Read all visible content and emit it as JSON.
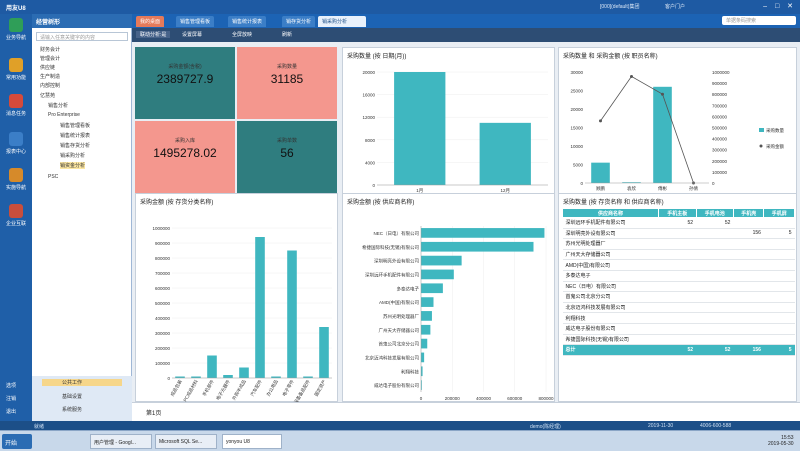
{
  "app": {
    "logo": "用友U8",
    "info": "[000](default)集团",
    "user": "客户门户",
    "win_btns": "– □ ✕"
  },
  "leftnav": [
    {
      "label": "业务导航",
      "color": "#2f9e58",
      "icon": "briefcase-icon"
    },
    {
      "label": "常用功能",
      "color": "#e0a028",
      "icon": "star-icon"
    },
    {
      "label": "消息任务",
      "color": "#d64a3a",
      "icon": "message-icon"
    },
    {
      "label": "报表中心",
      "color": "#3b7ec7",
      "icon": "report-icon"
    },
    {
      "label": "实施导航",
      "color": "#d68a2a",
      "icon": "compass-icon"
    },
    {
      "label": "企业互联",
      "color": "#c94e3c",
      "icon": "network-icon"
    }
  ],
  "leftnav_bottom": [
    "选项",
    "注销",
    "退出"
  ],
  "tree": {
    "title": "经营树形",
    "search_placeholder": "请输入任意关键字的内容",
    "items": [
      "财务会计",
      "管理会计",
      "供应链",
      "生产制造",
      "内部控制",
      "亿慧苑",
      "销售分析",
      "Pro Enterprise",
      "销售管理看板",
      "销售统计报表",
      "销售存货分析",
      "销采购分析",
      "销资金分析",
      "PSC"
    ],
    "footer": [
      "公共工作",
      "基础设置",
      "系统服务"
    ]
  },
  "tabs": [
    "我的桌面",
    "销售管理看板",
    "销售统计报表",
    "销存货分析",
    "销采购分析"
  ],
  "search_placeholder": "单据条码搜索",
  "toolbar": [
    "联动分析:是",
    "设置屏幕",
    "全屏放映",
    "刷新"
  ],
  "kpis": [
    {
      "label": "采购金额(含税)",
      "value": "2389727.9",
      "color": "#2f7d7f"
    },
    {
      "label": "采购数量",
      "value": "31185",
      "color": "#f4978e"
    },
    {
      "label": "采购入库",
      "value": "1495278.02",
      "color": "#f4978e"
    },
    {
      "label": "采购单数",
      "value": "56",
      "color": "#2f7d7f"
    }
  ],
  "charts": {
    "by_month": {
      "type": "bar",
      "title": "采购数量 (按 日期(月))",
      "categories": [
        "1月",
        "12月"
      ],
      "values": [
        20500,
        11000
      ],
      "ylim": [
        0,
        20000
      ],
      "yticks": [
        "0",
        "4000",
        "8000",
        "12000",
        "16000",
        "20000"
      ],
      "color": "#3fb7c0"
    },
    "by_staff": {
      "type": "bar+line",
      "title": "采购数量 和 采购金额 (按 职员名称)",
      "categories": [
        "顾鹏",
        "袁欣",
        "傅彬",
        "孙倩"
      ],
      "bars": [
        5500,
        200,
        26000,
        0
      ],
      "line": [
        560000,
        960000,
        800000,
        0
      ],
      "ylim_left": [
        0,
        30000
      ],
      "ylim_right": [
        0,
        1000000
      ],
      "yticks_left": [
        "0",
        "5000",
        "10000",
        "15000",
        "20000",
        "25000",
        "30000"
      ],
      "yticks_right": [
        "0",
        "100000",
        "200000",
        "300000",
        "400000",
        "500000",
        "600000",
        "700000",
        "800000",
        "900000",
        "1000000"
      ],
      "legend": [
        "采购数量",
        "采购金额"
      ],
      "color": "#3fb7c0",
      "line_color": "#555555"
    },
    "by_class": {
      "type": "bar",
      "title": "采购金额 (按 存货分类名称)",
      "categories": [
        "成品包装",
        "PC成品材料",
        "手机部件",
        "电子元器件",
        "外购半成品",
        "汽车配件",
        "办公用品",
        "电子零件",
        "设备备品配件",
        "固定资产"
      ],
      "values": [
        10000,
        10000,
        150000,
        20000,
        70000,
        940000,
        10000,
        850000,
        10000,
        340000
      ],
      "ylim": [
        0,
        1000000
      ],
      "yticks": [
        "0",
        "100000",
        "200000",
        "300000",
        "400000",
        "500000",
        "600000",
        "700000",
        "800000",
        "900000",
        "1000000"
      ],
      "color": "#3fb7c0"
    },
    "by_vendor": {
      "type": "bar-horizontal",
      "title": "采购金额 (按 供应商名称)",
      "categories": [
        "NEC（日电）有限公司",
        "希捷国际科技(无锡)有限公司",
        "深圳明亮外设有限公司",
        "深圳远环手机配件有限公司",
        "多泰达电子",
        "AMD(中国)有限公司",
        "苏州光明处理器厂",
        "广州天大存储器公司",
        "首鬼公司北京分公司",
        "北京迈鸿科技发展有限公司",
        "利翔科技",
        "威达电子股份有限公司"
      ],
      "values": [
        790000,
        720000,
        260000,
        210000,
        140000,
        80000,
        70000,
        60000,
        40000,
        20000,
        10000,
        5000
      ],
      "xlim": [
        0,
        800000
      ],
      "xticks": [
        "0",
        "200000",
        "400000",
        "600000",
        "800000"
      ],
      "color": "#3fb7c0"
    }
  },
  "table": {
    "title": "采购数量 (按 存货名称 和 供应商名称)",
    "columns": [
      "供应商名称",
      "手机主板",
      "手机电池",
      "手机壳",
      "手机屏"
    ],
    "rows": [
      [
        "深圳远环手机配件有限公司",
        "52",
        "52",
        "",
        ""
      ],
      [
        "深圳明亮外设有限公司",
        "",
        "",
        "156",
        "5"
      ],
      [
        "苏州光明处理器厂",
        "",
        "",
        "",
        ""
      ],
      [
        "广州天大存储器公司",
        "",
        "",
        "",
        ""
      ],
      [
        "AMD(中国)有限公司",
        "",
        "",
        "",
        ""
      ],
      [
        "多泰达电子",
        "",
        "",
        "",
        ""
      ],
      [
        "NEC（日电）有限公司",
        "",
        "",
        "",
        ""
      ],
      [
        "首鬼公司北京分公司",
        "",
        "",
        "",
        ""
      ],
      [
        "北京迈鸿科技发展有限公司",
        "",
        "",
        "",
        ""
      ],
      [
        "利翔科技",
        "",
        "",
        "",
        ""
      ],
      [
        "威达电子股份有限公司",
        "",
        "",
        "",
        ""
      ],
      [
        "希捷国际科技(无锡)有限公司",
        "",
        "",
        "",
        ""
      ]
    ],
    "total": [
      "总计",
      "52",
      "52",
      "156",
      "5"
    ]
  },
  "pager": "第1页",
  "status": {
    "left": "就绪",
    "user": "demo(陈经理)",
    "date": "2019-11-30",
    "phone": "4006-600-588"
  },
  "taskbar": {
    "start": "开始",
    "items": [
      "用户管理 - Googl...",
      "Microsoft SQL Se...",
      "yonyou U8"
    ],
    "time": "15:53",
    "date": "2019-05-30"
  }
}
